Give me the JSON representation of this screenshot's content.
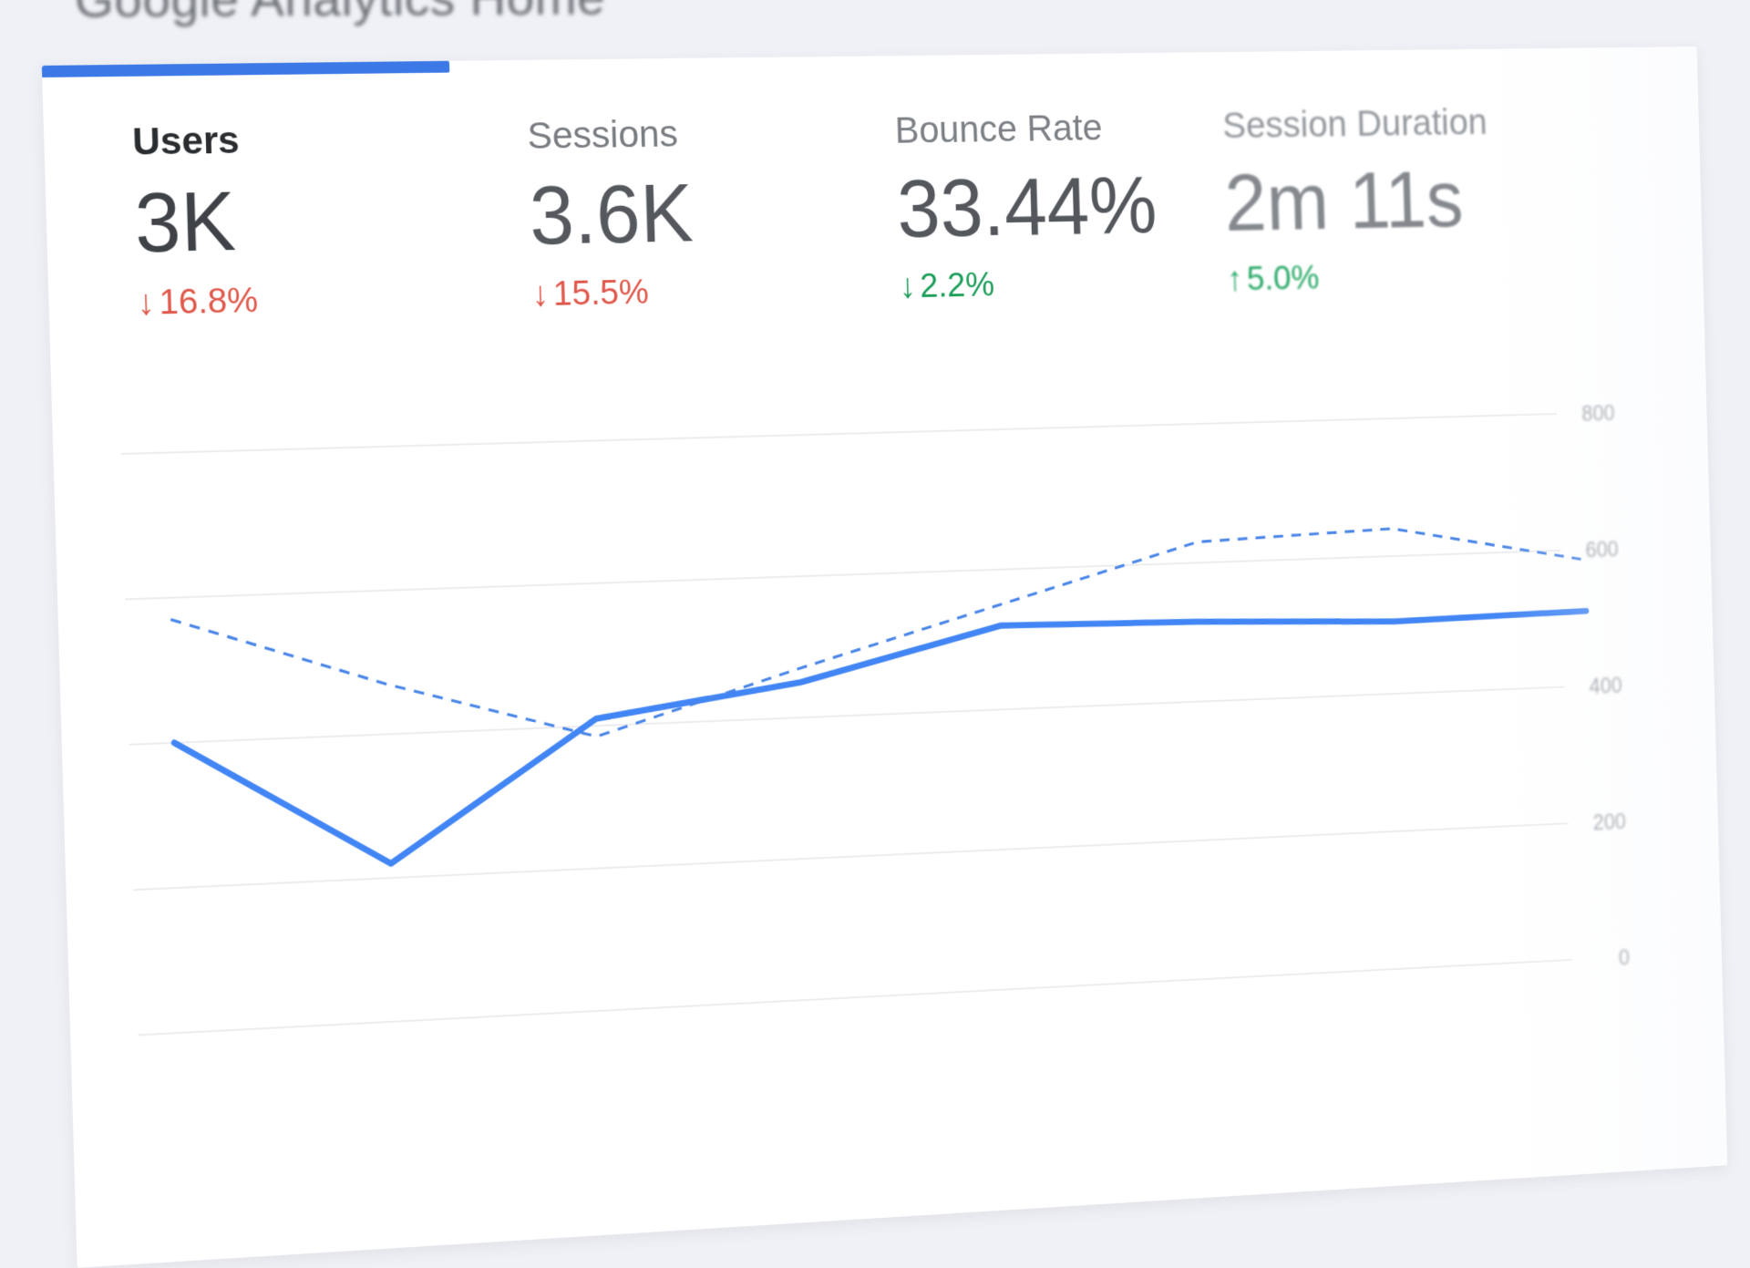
{
  "page": {
    "title": "Google Analytics Home",
    "background_color": "#eff1f6"
  },
  "card": {
    "tab_indicator_color": "#3d79e6",
    "selected_metric": "Users"
  },
  "metrics": [
    {
      "id": "users",
      "label": "Users",
      "value": "3K",
      "arrow": "↓",
      "delta": "16.8%",
      "delta_direction": "down",
      "delta_color": "#e0584b",
      "selected": true
    },
    {
      "id": "sessions",
      "label": "Sessions",
      "value": "3.6K",
      "arrow": "↓",
      "delta": "15.5%",
      "delta_direction": "down",
      "delta_color": "#e0584b",
      "selected": false
    },
    {
      "id": "bounce-rate",
      "label": "Bounce Rate",
      "value": "33.44%",
      "arrow": "↓",
      "delta": "2.2%",
      "delta_direction": "down",
      "delta_color": "#1d9e5a",
      "selected": false
    },
    {
      "id": "session-duration",
      "label": "Session Duration",
      "value": "2m 11s",
      "arrow": "↑",
      "delta": "5.0%",
      "delta_direction": "up",
      "delta_color": "#27a866",
      "selected": false
    }
  ],
  "chart_data": {
    "type": "line",
    "x": [
      0,
      1,
      2,
      3,
      4,
      5,
      6,
      7
    ],
    "x_axis_labels_visible": false,
    "series": [
      {
        "name": "current-period",
        "style": "solid",
        "color": "#4285f4",
        "values": [
          400,
          220,
          410,
          450,
          520,
          515,
          505,
          510
        ]
      },
      {
        "name": "previous-period",
        "style": "dashed",
        "color": "#4a86e8",
        "values": [
          570,
          470,
          385,
          470,
          550,
          630,
          640,
          585
        ]
      }
    ],
    "ylim": [
      0,
      800
    ],
    "yticks": [
      800,
      600,
      400,
      200,
      0
    ],
    "ytick_side": "right",
    "grid": "horizontal",
    "legend": "none"
  }
}
